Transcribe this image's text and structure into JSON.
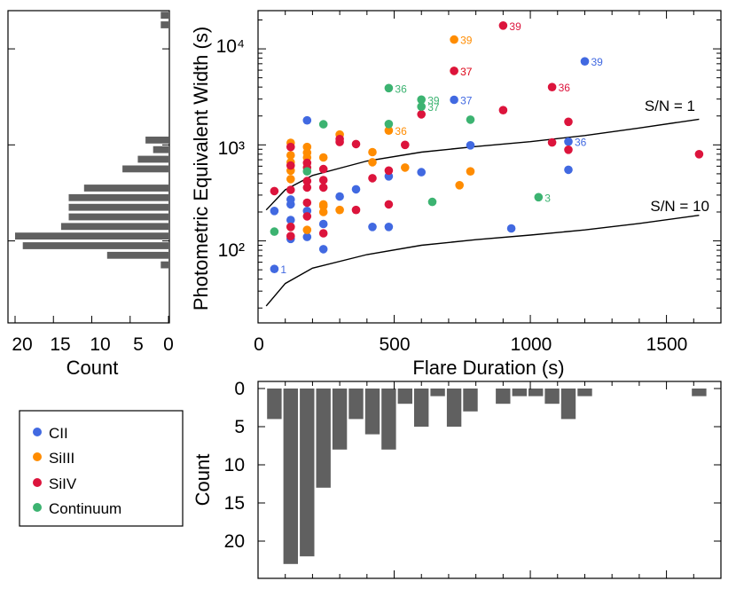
{
  "colors": {
    "CII": "#4169e1",
    "SiIII": "#ff8c00",
    "SiIV": "#dc143c",
    "Continuum": "#3cb371",
    "histogram": "#606060",
    "curve": "#000000"
  },
  "chart_data": [
    {
      "type": "scatter",
      "xlabel": "Flare Duration (s)",
      "ylabel": "Photometric Equivalent Width (s)",
      "xlim": [
        0,
        1700
      ],
      "ylim": [
        14,
        25000
      ],
      "y_scale": "log",
      "x_ticks": [
        0,
        500,
        1000,
        1500
      ],
      "y_tick_labels": [
        "10²",
        "10³",
        "10⁴"
      ],
      "y_tick_values": [
        100,
        1000,
        10000
      ],
      "legend": {
        "position": "separate box, bottom-left",
        "entries": [
          "CII",
          "SiIII",
          "SiIV",
          "Continuum"
        ]
      },
      "curves": [
        {
          "label": "S/N = 1",
          "x": [
            30,
            100,
            200,
            400,
            600,
            800,
            1000,
            1200,
            1400,
            1620
          ],
          "y": [
            210,
            340,
            480,
            680,
            840,
            960,
            1080,
            1250,
            1500,
            1850
          ]
        },
        {
          "label": "S/N = 10",
          "x": [
            30,
            100,
            200,
            400,
            600,
            800,
            1000,
            1200,
            1400,
            1620
          ],
          "y": [
            21,
            36,
            52,
            72,
            90,
            103,
            115,
            130,
            152,
            185
          ]
        }
      ],
      "series": [
        {
          "name": "CII",
          "points": [
            {
              "x": 60,
              "y": 205
            },
            {
              "x": 120,
              "y": 240
            },
            {
              "x": 120,
              "y": 270
            },
            {
              "x": 120,
              "y": 165
            },
            {
              "x": 120,
              "y": 105
            },
            {
              "x": 180,
              "y": 110
            },
            {
              "x": 180,
              "y": 205
            },
            {
              "x": 180,
              "y": 1800
            },
            {
              "x": 240,
              "y": 150
            },
            {
              "x": 240,
              "y": 82
            },
            {
              "x": 300,
              "y": 290
            },
            {
              "x": 360,
              "y": 345
            },
            {
              "x": 420,
              "y": 140
            },
            {
              "x": 480,
              "y": 140
            },
            {
              "x": 480,
              "y": 470
            },
            {
              "x": 600,
              "y": 520
            },
            {
              "x": 780,
              "y": 990
            },
            {
              "x": 930,
              "y": 135
            },
            {
              "x": 1140,
              "y": 550
            },
            {
              "x": 60,
              "y": 51,
              "label": "1"
            },
            {
              "x": 720,
              "y": 2950,
              "label": "37"
            },
            {
              "x": 1140,
              "y": 1080,
              "label": "36"
            },
            {
              "x": 1200,
              "y": 7400,
              "label": "39"
            }
          ]
        },
        {
          "name": "SiIII",
          "points": [
            {
              "x": 120,
              "y": 1050
            },
            {
              "x": 120,
              "y": 780
            },
            {
              "x": 120,
              "y": 660
            },
            {
              "x": 120,
              "y": 540
            },
            {
              "x": 120,
              "y": 440
            },
            {
              "x": 120,
              "y": 140
            },
            {
              "x": 180,
              "y": 950
            },
            {
              "x": 180,
              "y": 830
            },
            {
              "x": 180,
              "y": 740
            },
            {
              "x": 180,
              "y": 130
            },
            {
              "x": 240,
              "y": 740
            },
            {
              "x": 240,
              "y": 230
            },
            {
              "x": 240,
              "y": 200
            },
            {
              "x": 240,
              "y": 240
            },
            {
              "x": 300,
              "y": 1280
            },
            {
              "x": 300,
              "y": 210
            },
            {
              "x": 420,
              "y": 840
            },
            {
              "x": 420,
              "y": 660
            },
            {
              "x": 540,
              "y": 580
            },
            {
              "x": 740,
              "y": 380
            },
            {
              "x": 780,
              "y": 530
            },
            {
              "x": 480,
              "y": 1410,
              "label": "36"
            },
            {
              "x": 720,
              "y": 5900,
              "label": "37"
            },
            {
              "x": 720,
              "y": 12500,
              "label": "39"
            }
          ]
        },
        {
          "name": "SiIV",
          "points": [
            {
              "x": 60,
              "y": 330
            },
            {
              "x": 120,
              "y": 950
            },
            {
              "x": 120,
              "y": 610
            },
            {
              "x": 120,
              "y": 340
            },
            {
              "x": 120,
              "y": 140
            },
            {
              "x": 120,
              "y": 112
            },
            {
              "x": 180,
              "y": 650
            },
            {
              "x": 180,
              "y": 580
            },
            {
              "x": 180,
              "y": 420
            },
            {
              "x": 180,
              "y": 360
            },
            {
              "x": 180,
              "y": 250
            },
            {
              "x": 180,
              "y": 180
            },
            {
              "x": 240,
              "y": 560
            },
            {
              "x": 240,
              "y": 430
            },
            {
              "x": 240,
              "y": 360
            },
            {
              "x": 240,
              "y": 120
            },
            {
              "x": 300,
              "y": 1150
            },
            {
              "x": 300,
              "y": 1070
            },
            {
              "x": 360,
              "y": 1020
            },
            {
              "x": 360,
              "y": 210
            },
            {
              "x": 420,
              "y": 450
            },
            {
              "x": 480,
              "y": 540
            },
            {
              "x": 480,
              "y": 240
            },
            {
              "x": 540,
              "y": 1000
            },
            {
              "x": 600,
              "y": 2080
            },
            {
              "x": 900,
              "y": 2300
            },
            {
              "x": 1080,
              "y": 1060
            },
            {
              "x": 1140,
              "y": 1740
            },
            {
              "x": 1140,
              "y": 890
            },
            {
              "x": 1620,
              "y": 800
            },
            {
              "x": 720,
              "y": 5900,
              "label": "37"
            },
            {
              "x": 900,
              "y": 17500,
              "label": "39"
            },
            {
              "x": 1080,
              "y": 4000,
              "label": "36"
            }
          ]
        },
        {
          "name": "Continuum",
          "points": [
            {
              "x": 60,
              "y": 125
            },
            {
              "x": 180,
              "y": 530
            },
            {
              "x": 240,
              "y": 1640
            },
            {
              "x": 480,
              "y": 1650
            },
            {
              "x": 640,
              "y": 255
            },
            {
              "x": 780,
              "y": 1830
            },
            {
              "x": 480,
              "y": 3900,
              "label": "36"
            },
            {
              "x": 600,
              "y": 2960,
              "label": "39"
            },
            {
              "x": 600,
              "y": 2500,
              "label": "37"
            },
            {
              "x": 1030,
              "y": 285,
              "label": "3"
            }
          ]
        }
      ]
    },
    {
      "type": "bar",
      "orientation": "horizontal",
      "xlabel": "Count",
      "x_reversed": true,
      "xlim": [
        0,
        21
      ],
      "x_ticks": [
        20,
        15,
        10,
        5,
        0
      ],
      "bin_axis": "Photometric Equivalent Width (s), log-spaced bins",
      "bin_edges_log10": [
        1.3,
        1.4,
        1.5,
        1.6,
        1.7,
        1.8,
        1.9,
        2.0,
        2.1,
        2.2,
        2.3,
        2.4,
        2.5,
        2.6,
        2.7,
        2.8,
        2.9,
        3.0,
        3.1,
        3.2,
        3.3,
        3.4,
        3.5,
        3.6,
        3.7,
        3.8,
        3.9,
        4.0,
        4.1,
        4.2,
        4.3,
        4.4
      ],
      "values": [
        0,
        0,
        0,
        0,
        1,
        8,
        19,
        20,
        14,
        13,
        13,
        13,
        11,
        0,
        6,
        4,
        2,
        3,
        0,
        0,
        0,
        0,
        0,
        0,
        0,
        0,
        0,
        0,
        0,
        1,
        1
      ]
    },
    {
      "type": "bar",
      "orientation": "vertical",
      "ylabel": "Count",
      "y_reversed": true,
      "ylim": [
        0,
        25
      ],
      "y_ticks": [
        0,
        5,
        10,
        15,
        20
      ],
      "bin_axis": "Flare Duration (s)",
      "bin_width": 60,
      "bin_starts": [
        30,
        90,
        150,
        210,
        270,
        330,
        390,
        450,
        510,
        570,
        630,
        690,
        750,
        810,
        870,
        930,
        990,
        1050,
        1110,
        1170,
        1230,
        1290,
        1350,
        1410,
        1470,
        1530,
        1590
      ],
      "values": [
        4,
        23,
        22,
        13,
        8,
        4,
        6,
        8,
        2,
        5,
        1,
        5,
        3,
        0,
        2,
        1,
        1,
        2,
        4,
        1,
        0,
        0,
        0,
        0,
        0,
        0,
        1
      ]
    }
  ]
}
